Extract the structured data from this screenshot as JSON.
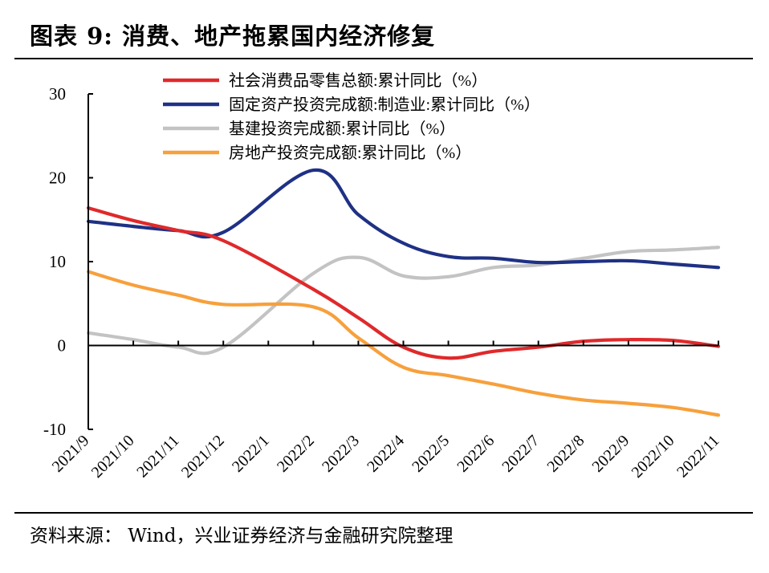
{
  "header": {
    "title": "图表 9:  消费、地产拖累国内经济修复"
  },
  "footer": {
    "source": "资料来源：  Wind，兴业证券经济与金融研究院整理"
  },
  "chart_data": {
    "type": "line",
    "x": [
      "2021/9",
      "2021/10",
      "2021/11",
      "2021/12",
      "2022/1",
      "2022/2",
      "2022/3",
      "2022/4",
      "2022/5",
      "2022/6",
      "2022/7",
      "2022/8",
      "2022/9",
      "2022/10",
      "2022/11"
    ],
    "ylim": [
      -10,
      30
    ],
    "yticks": [
      -10,
      0,
      10,
      20,
      30
    ],
    "legend_position": "top",
    "grid": false,
    "series": [
      {
        "name": "社会消费品零售总额:累计同比（%）",
        "color": "#e0292b",
        "values": [
          16.4,
          14.9,
          13.7,
          12.5,
          null,
          6.7,
          3.3,
          -0.2,
          -1.5,
          -0.7,
          -0.2,
          0.5,
          0.7,
          0.6,
          -0.1
        ]
      },
      {
        "name": "固定资产投资完成额:制造业:累计同比（%）",
        "color": "#1f3185",
        "values": [
          14.8,
          14.2,
          13.7,
          13.5,
          null,
          20.9,
          15.6,
          12.2,
          10.6,
          10.4,
          9.9,
          10.0,
          10.1,
          9.7,
          9.3
        ]
      },
      {
        "name": "基建投资完成额:累计同比（%）",
        "color": "#c3c3c3",
        "values": [
          1.5,
          0.7,
          -0.2,
          -0.2,
          null,
          8.6,
          10.5,
          8.3,
          8.2,
          9.3,
          9.6,
          10.4,
          11.2,
          11.4,
          11.7
        ]
      },
      {
        "name": "房地产投资完成额:累计同比（%）",
        "color": "#f7a03c",
        "values": [
          8.8,
          7.2,
          6.0,
          4.9,
          null,
          4.6,
          0.9,
          -2.6,
          -3.6,
          -4.6,
          -5.7,
          -6.5,
          -6.9,
          -7.4,
          -8.3
        ]
      }
    ]
  }
}
